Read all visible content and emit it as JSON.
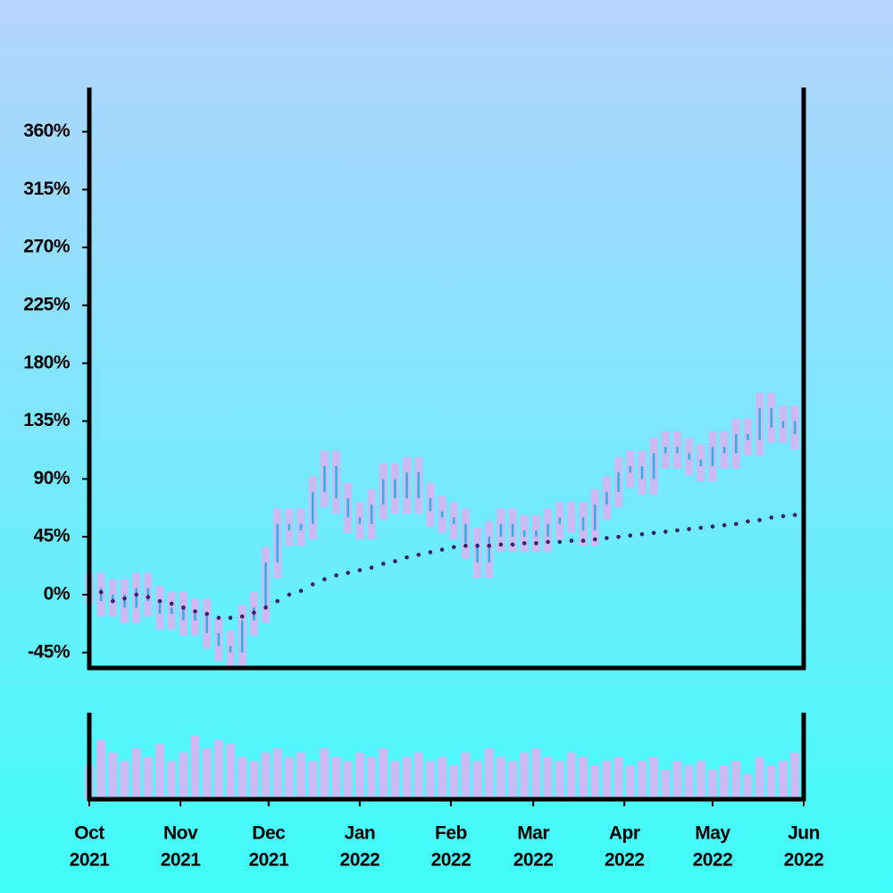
{
  "chart_data": {
    "type": "candlestick",
    "x": [
      "2021-10-01",
      "2021-10-05",
      "2021-10-09",
      "2021-10-13",
      "2021-10-17",
      "2021-10-21",
      "2021-10-25",
      "2021-10-29",
      "2021-11-02",
      "2021-11-06",
      "2021-11-10",
      "2021-11-14",
      "2021-11-18",
      "2021-11-22",
      "2021-11-26",
      "2021-11-30",
      "2021-12-04",
      "2021-12-08",
      "2021-12-12",
      "2021-12-16",
      "2021-12-20",
      "2021-12-24",
      "2021-12-28",
      "2022-01-01",
      "2022-01-05",
      "2022-01-09",
      "2022-01-13",
      "2022-01-17",
      "2022-01-21",
      "2022-01-25",
      "2022-01-29",
      "2022-02-02",
      "2022-02-06",
      "2022-02-10",
      "2022-02-14",
      "2022-02-18",
      "2022-02-22",
      "2022-02-26",
      "2022-03-02",
      "2022-03-06",
      "2022-03-10",
      "2022-03-14",
      "2022-03-18",
      "2022-03-22",
      "2022-03-26",
      "2022-03-30",
      "2022-04-03",
      "2022-04-07",
      "2022-04-11",
      "2022-04-15",
      "2022-04-19",
      "2022-04-23",
      "2022-04-27",
      "2022-05-01",
      "2022-05-05",
      "2022-05-09",
      "2022-05-13",
      "2022-05-17",
      "2022-05-21",
      "2022-05-25",
      "2022-05-29"
    ],
    "open": [
      5,
      5,
      -5,
      0,
      -10,
      5,
      -5,
      -15,
      -10,
      -20,
      -15,
      -30,
      -40,
      -45,
      -20,
      -10,
      25,
      55,
      50,
      55,
      80,
      100,
      75,
      60,
      55,
      70,
      90,
      75,
      95,
      75,
      65,
      60,
      55,
      40,
      25,
      45,
      55,
      45,
      50,
      45,
      55,
      60,
      60,
      50,
      70,
      80,
      95,
      100,
      90,
      110,
      115,
      110,
      105,
      100,
      115,
      110,
      125,
      120,
      145,
      130,
      135
    ],
    "high": [
      17,
      17,
      12,
      12,
      17,
      17,
      7,
      2,
      2,
      -3,
      -3,
      -18,
      -28,
      -8,
      2,
      37,
      67,
      67,
      67,
      92,
      112,
      112,
      87,
      72,
      82,
      102,
      102,
      107,
      107,
      87,
      77,
      72,
      67,
      52,
      57,
      67,
      67,
      62,
      62,
      67,
      72,
      72,
      72,
      82,
      92,
      107,
      112,
      112,
      122,
      127,
      127,
      122,
      117,
      127,
      127,
      137,
      137,
      157,
      157,
      147,
      147
    ],
    "low": [
      -7,
      -17,
      -17,
      -22,
      -22,
      -17,
      -27,
      -27,
      -32,
      -32,
      -42,
      -52,
      -57,
      -55,
      -32,
      -22,
      13,
      38,
      38,
      43,
      68,
      63,
      48,
      43,
      43,
      58,
      63,
      63,
      63,
      53,
      48,
      43,
      28,
      13,
      13,
      33,
      33,
      33,
      33,
      33,
      43,
      48,
      38,
      38,
      58,
      68,
      83,
      78,
      78,
      98,
      98,
      93,
      88,
      88,
      98,
      98,
      108,
      108,
      118,
      118,
      113
    ],
    "close": [
      5,
      -5,
      0,
      -10,
      5,
      -5,
      -15,
      -10,
      -20,
      -15,
      -30,
      -40,
      -45,
      -20,
      -10,
      25,
      55,
      50,
      55,
      80,
      100,
      75,
      60,
      55,
      70,
      90,
      75,
      95,
      75,
      65,
      60,
      55,
      40,
      25,
      45,
      55,
      45,
      50,
      45,
      55,
      60,
      60,
      50,
      70,
      80,
      95,
      100,
      90,
      110,
      115,
      110,
      105,
      100,
      115,
      110,
      125,
      120,
      145,
      130,
      135,
      125
    ],
    "moving_average": [
      8,
      2,
      -5,
      -3,
      0,
      -2,
      -5,
      -7,
      -10,
      -13,
      -15,
      -18,
      -18,
      -17,
      -14,
      -10,
      -5,
      0,
      3,
      8,
      12,
      15,
      17,
      19,
      21,
      24,
      26,
      29,
      31,
      33,
      35,
      37,
      38,
      38,
      38,
      39,
      39,
      40,
      40,
      41,
      41,
      42,
      42,
      43,
      44,
      45,
      46,
      47,
      48,
      49,
      50,
      51,
      52,
      53,
      54,
      55,
      57,
      58,
      60,
      61,
      62
    ],
    "volume": [
      40,
      70,
      55,
      45,
      60,
      50,
      65,
      45,
      55,
      75,
      60,
      70,
      65,
      50,
      45,
      55,
      60,
      50,
      55,
      45,
      60,
      50,
      45,
      55,
      50,
      60,
      45,
      50,
      55,
      45,
      50,
      40,
      55,
      45,
      60,
      50,
      45,
      55,
      60,
      50,
      45,
      55,
      50,
      40,
      45,
      50,
      40,
      45,
      50,
      35,
      45,
      40,
      45,
      35,
      40,
      45,
      30,
      50,
      40,
      45,
      55
    ],
    "xlim": [
      "2021-10-01",
      "2022-06-01"
    ],
    "xticks": [
      {
        "value": "2021-10-01",
        "label": [
          "Oct",
          "2021"
        ]
      },
      {
        "value": "2021-11-01",
        "label": [
          "Nov",
          "2021"
        ]
      },
      {
        "value": "2021-12-01",
        "label": [
          "Dec",
          "2021"
        ]
      },
      {
        "value": "2022-01-01",
        "label": [
          "Jan",
          "2022"
        ]
      },
      {
        "value": "2022-02-01",
        "label": [
          "Feb",
          "2022"
        ]
      },
      {
        "value": "2022-03-01",
        "label": [
          "Mar",
          "2022"
        ]
      },
      {
        "value": "2022-04-01",
        "label": [
          "Apr",
          "2022"
        ]
      },
      {
        "value": "2022-05-01",
        "label": [
          "May",
          "2022"
        ]
      },
      {
        "value": "2022-06-01",
        "label": [
          "Jun",
          "2022"
        ]
      }
    ],
    "ylim": [
      -57,
      393
    ],
    "yticks": [
      {
        "value": -45,
        "label": "-45%"
      },
      {
        "value": 0,
        "label": "0%"
      },
      {
        "value": 45,
        "label": "45%"
      },
      {
        "value": 90,
        "label": "90%"
      },
      {
        "value": 135,
        "label": "135%"
      },
      {
        "value": 180,
        "label": "180%"
      },
      {
        "value": 225,
        "label": "225%"
      },
      {
        "value": 270,
        "label": "270%"
      },
      {
        "value": 315,
        "label": "315%"
      },
      {
        "value": 360,
        "label": "360%"
      }
    ],
    "volume_lim": [
      0,
      100
    ],
    "colors": {
      "range": "#cdbaf2",
      "body": "#1fb4ea",
      "average": "#3a1f6e",
      "volume": "#cdbaf2"
    }
  }
}
